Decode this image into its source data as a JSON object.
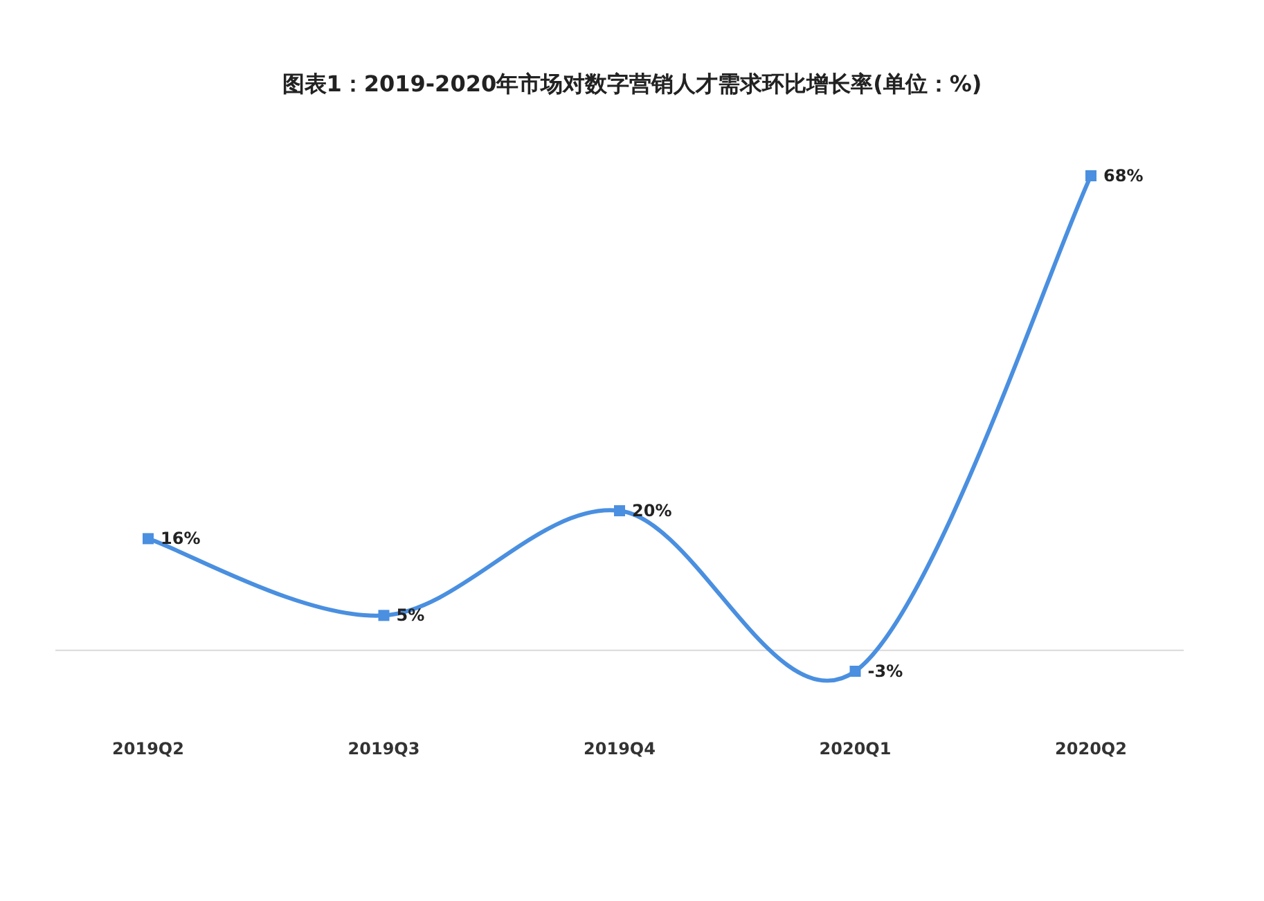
{
  "chart_data": {
    "type": "line",
    "title": "图表1：2019-2020年市场对数字营销人才需求环比增长率(单位：%)",
    "categories": [
      "2019Q2",
      "2019Q3",
      "2019Q4",
      "2020Q1",
      "2020Q2"
    ],
    "series": [
      {
        "color": "#4a8fe0",
        "values": [
          16,
          5,
          20,
          -3,
          68
        ],
        "value_labels": [
          "16%",
          "5%",
          "20%",
          "-3%",
          "68%"
        ]
      }
    ],
    "marker": "square",
    "line_style": "solid",
    "tick_labels": "x"
  }
}
